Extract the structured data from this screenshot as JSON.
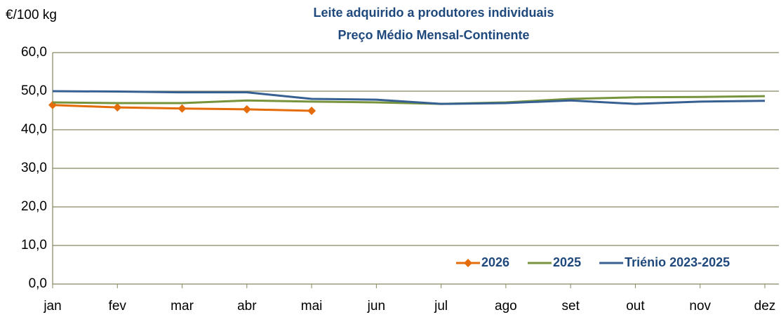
{
  "chart_data": {
    "type": "line",
    "title": "Leite adquirido a produtores individuais",
    "subtitle": "Preço Médio Mensal-Continente",
    "y_axis_label": "€/100 kg",
    "categories": [
      "jan",
      "fev",
      "mar",
      "abr",
      "mai",
      "jun",
      "jul",
      "ago",
      "set",
      "out",
      "nov",
      "dez"
    ],
    "series": [
      {
        "name": "2026",
        "color": "#e46c0a",
        "marker": "diamond",
        "values": [
          46.4,
          45.8,
          45.5,
          45.3,
          44.9,
          null,
          null,
          null,
          null,
          null,
          null,
          null
        ]
      },
      {
        "name": "2025",
        "color": "#77933c",
        "values": [
          47.1,
          46.9,
          46.9,
          47.6,
          47.3,
          47.1,
          46.7,
          47.1,
          48.0,
          48.4,
          48.5,
          48.7
        ]
      },
      {
        "name": "Triénio 2023-2025",
        "color": "#376092",
        "values": [
          50.0,
          49.9,
          49.7,
          49.7,
          48.0,
          47.8,
          46.7,
          46.9,
          47.6,
          46.7,
          47.3,
          47.5
        ]
      }
    ],
    "ylim": [
      0,
      60
    ],
    "yticks": [
      {
        "value": 0,
        "label": "0,0"
      },
      {
        "value": 10,
        "label": "10,0"
      },
      {
        "value": 20,
        "label": "20,0"
      },
      {
        "value": 30,
        "label": "30,0"
      },
      {
        "value": 40,
        "label": "40,0"
      },
      {
        "value": 50,
        "label": "50,0"
      },
      {
        "value": 60,
        "label": "60,0"
      }
    ],
    "grid": true,
    "legend": "bottom-right"
  }
}
